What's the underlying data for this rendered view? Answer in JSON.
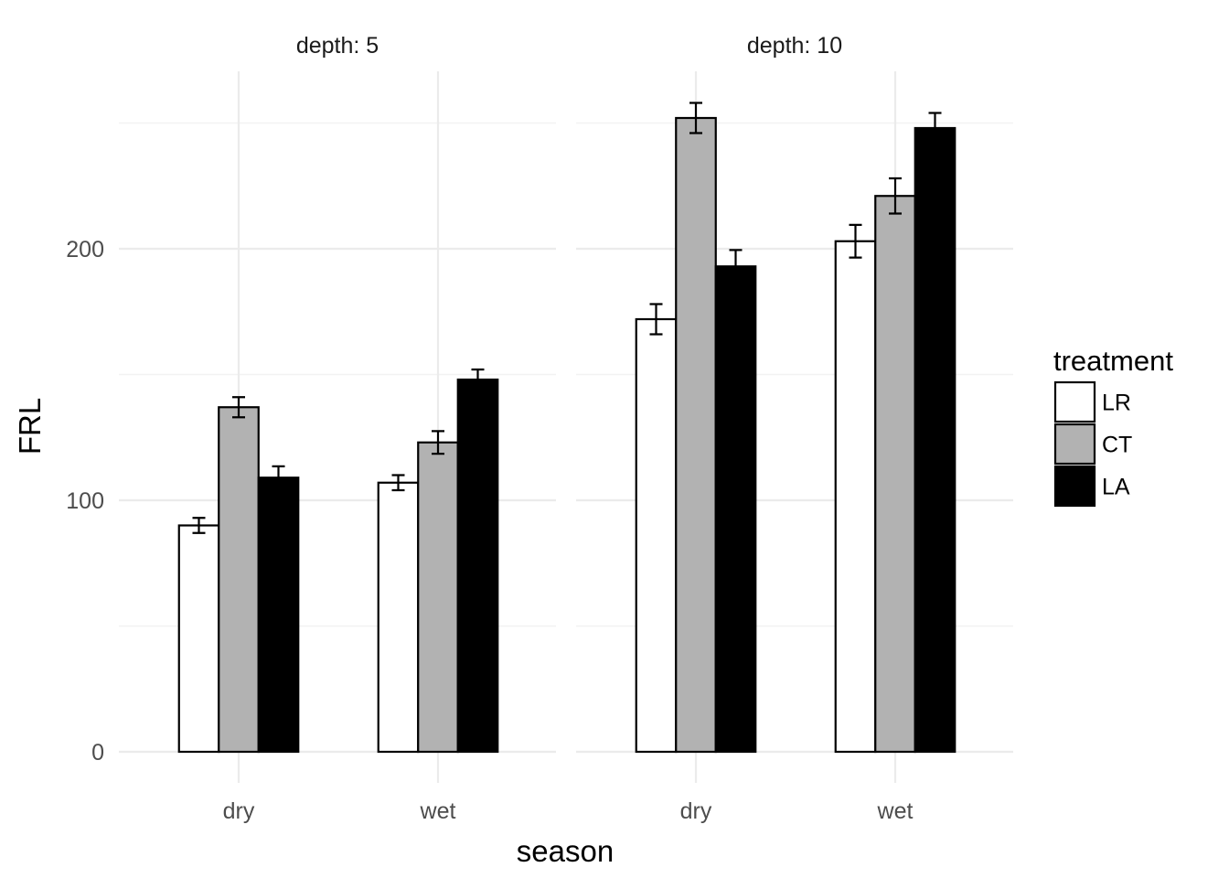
{
  "chart_data": {
    "type": "bar",
    "facet_label": "depth",
    "xlabel": "season",
    "ylabel": "FRL",
    "ylim": [
      0,
      250
    ],
    "y_ticks": [
      0,
      100,
      200
    ],
    "y_tick_labels": [
      "0",
      "100",
      "200"
    ],
    "categories": [
      "dry",
      "wet"
    ],
    "legend": {
      "title": "treatment",
      "position": "right",
      "entries": [
        {
          "name": "LR",
          "color": "#ffffff"
        },
        {
          "name": "CT",
          "color": "#b2b2b2"
        },
        {
          "name": "LA",
          "color": "#000000"
        }
      ]
    },
    "facets": [
      {
        "label": "depth: 5",
        "series": [
          {
            "name": "LR",
            "values": [
              90,
              107
            ],
            "errors": [
              3,
              3
            ]
          },
          {
            "name": "CT",
            "values": [
              137,
              123
            ],
            "errors": [
              4,
              4.5
            ]
          },
          {
            "name": "LA",
            "values": [
              109,
              148
            ],
            "errors": [
              4.5,
              4
            ]
          }
        ]
      },
      {
        "label": "depth: 10",
        "series": [
          {
            "name": "LR",
            "values": [
              172,
              203
            ],
            "errors": [
              6,
              6.5
            ]
          },
          {
            "name": "CT",
            "values": [
              252,
              221
            ],
            "errors": [
              6,
              7
            ]
          },
          {
            "name": "LA",
            "values": [
              193,
              248
            ],
            "errors": [
              6.5,
              6
            ]
          }
        ]
      }
    ],
    "grid": true
  }
}
